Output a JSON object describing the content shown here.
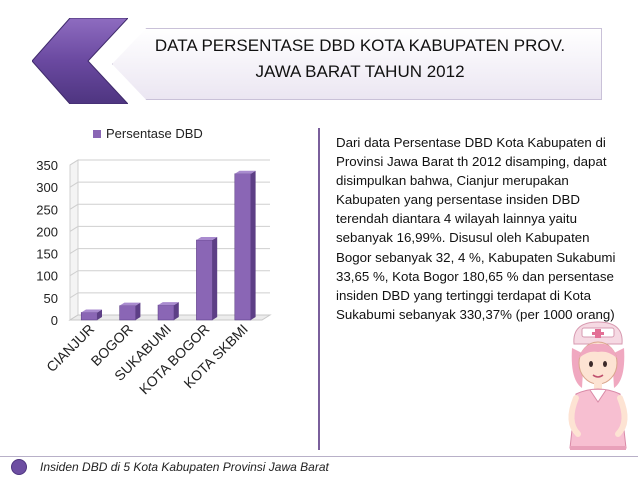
{
  "slide": {
    "title_line1": "DATA PERSENTASE DBD KOTA KABUPATEN PROV.",
    "title_line2": "JAWA BARAT TAHUN 2012",
    "description": "Dari data Persentase DBD Kota Kabupaten di Provinsi Jawa Barat th 2012 disamping, dapat disimpulkan bahwa, Cianjur merupakan Kabupaten yang persentase insiden DBD terendah diantara 4 wilayah lainnya yaitu sebanyak 16,99%. Disusul oleh Kabupaten Bogor sebanyak 32, 4 %, Kabupaten Sukabumi 33,65 %, Kota Bogor 180,65 % dan persentase insiden DBD yang tertinggi terdapat di Kota Sukabumi sebanyak 330,37% (per 1000 orang)",
    "footer": "Insiden DBD di 5 Kota Kabupaten Provinsi Jawa Barat"
  },
  "colors": {
    "bar_front": "#8a66b5",
    "bar_side": "#5d3f86",
    "bar_top": "#a98bcf",
    "accent": "#6d4ea2"
  },
  "icons": [
    "chevron-arrow-icon",
    "nurse-illustration"
  ],
  "chart_data": {
    "type": "bar",
    "style": "3d-column",
    "categories": [
      "CIANJUR",
      "BOGOR",
      "SUKABUMI",
      "KOTA BOGOR",
      "KOTA SKBMI"
    ],
    "series": [
      {
        "name": "Persentase DBD",
        "values": [
          16.99,
          32.4,
          33.65,
          180.65,
          330.37
        ]
      }
    ],
    "yticks": [
      "0",
      "50",
      "100",
      "150",
      "200",
      "250",
      "300",
      "350"
    ],
    "ylim": [
      0,
      350
    ],
    "grid": true,
    "legend_position": "top"
  }
}
